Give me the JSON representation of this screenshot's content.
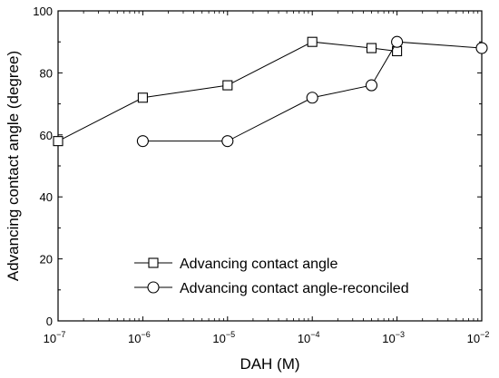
{
  "chart_data": {
    "type": "line",
    "x_scale": "log",
    "xlabel": "DAH (M)",
    "ylabel": "Advancing contact angle (degree)",
    "xlim": [
      1e-07,
      0.01
    ],
    "ylim": [
      0,
      100
    ],
    "x_ticks": [
      {
        "value": 1e-07,
        "base": "10",
        "exp": "−7"
      },
      {
        "value": 1e-06,
        "base": "10",
        "exp": "−6"
      },
      {
        "value": 1e-05,
        "base": "10",
        "exp": "−5"
      },
      {
        "value": 0.0001,
        "base": "10",
        "exp": "−4"
      },
      {
        "value": 0.001,
        "base": "10",
        "exp": "−3"
      },
      {
        "value": 0.01,
        "base": "10",
        "exp": "−2"
      }
    ],
    "y_ticks": [
      0,
      20,
      40,
      60,
      80,
      100
    ],
    "grid": false,
    "legend_position": "bottom-center",
    "series": [
      {
        "name": "Advancing contact angle",
        "marker": "square",
        "x": [
          1e-07,
          1e-06,
          1e-05,
          0.0001,
          0.0005,
          0.001
        ],
        "y": [
          58,
          72,
          76,
          90,
          88,
          87
        ]
      },
      {
        "name": "Advancing contact angle-reconciled",
        "marker": "circle",
        "x": [
          1e-06,
          1e-05,
          0.0001,
          0.0005,
          0.001,
          0.01
        ],
        "y": [
          58,
          58,
          72,
          76,
          90,
          88
        ]
      }
    ]
  }
}
